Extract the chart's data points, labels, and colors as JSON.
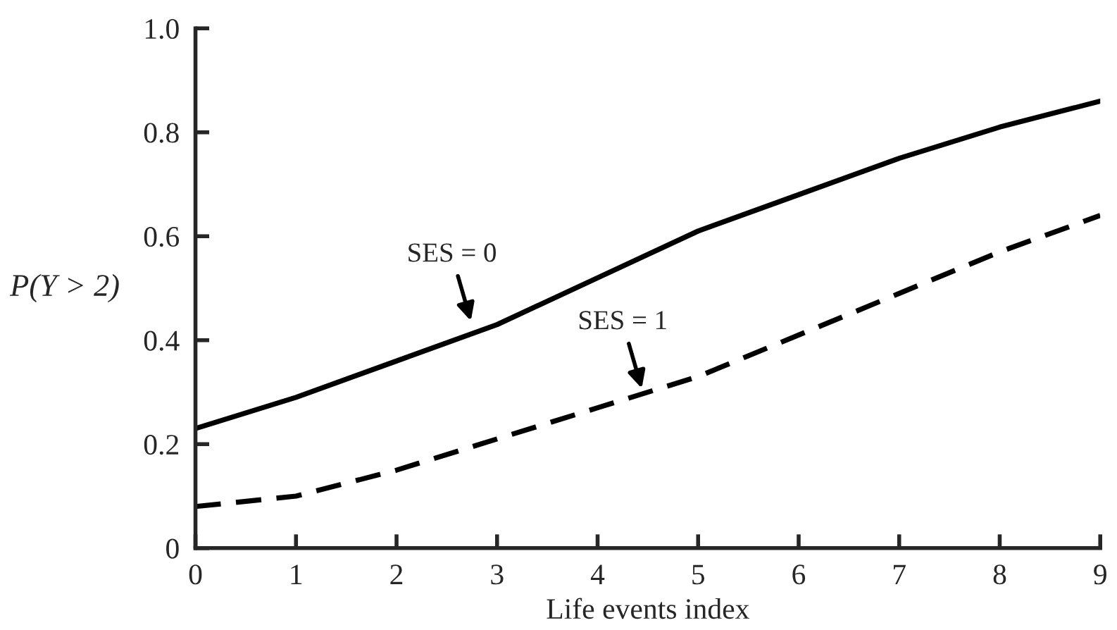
{
  "chart_data": {
    "type": "line",
    "xlabel": "Life events index",
    "ylabel": "P(Y > 2)",
    "x": [
      0,
      1,
      2,
      3,
      4,
      5,
      6,
      7,
      8,
      9
    ],
    "series": [
      {
        "color": "#000000",
        "line_style": "solid",
        "values": [
          0.23,
          0.29,
          0.36,
          0.43,
          0.52,
          0.61,
          0.68,
          0.75,
          0.81,
          0.86
        ]
      },
      {
        "color": "#000000",
        "line_style": "dashed",
        "values": [
          0.08,
          0.1,
          0.15,
          0.21,
          0.27,
          0.33,
          0.41,
          0.49,
          0.57,
          0.64
        ]
      }
    ],
    "annotations": [
      {
        "text": "SES = 0",
        "x": 2.75,
        "y": 0.43
      },
      {
        "text": "SES = 1",
        "x": 4.45,
        "y": 0.3
      }
    ],
    "xlim": [
      0,
      9
    ],
    "ylim": [
      0,
      1.0
    ],
    "xticks": [
      0,
      1,
      2,
      3,
      4,
      5,
      6,
      7,
      8,
      9
    ],
    "yticks": [
      0,
      0.2,
      0.4,
      0.6,
      0.8,
      {
        "value": 1.0,
        "label": "1.0"
      }
    ],
    "grid": false,
    "legend": false,
    "marker": "none"
  }
}
